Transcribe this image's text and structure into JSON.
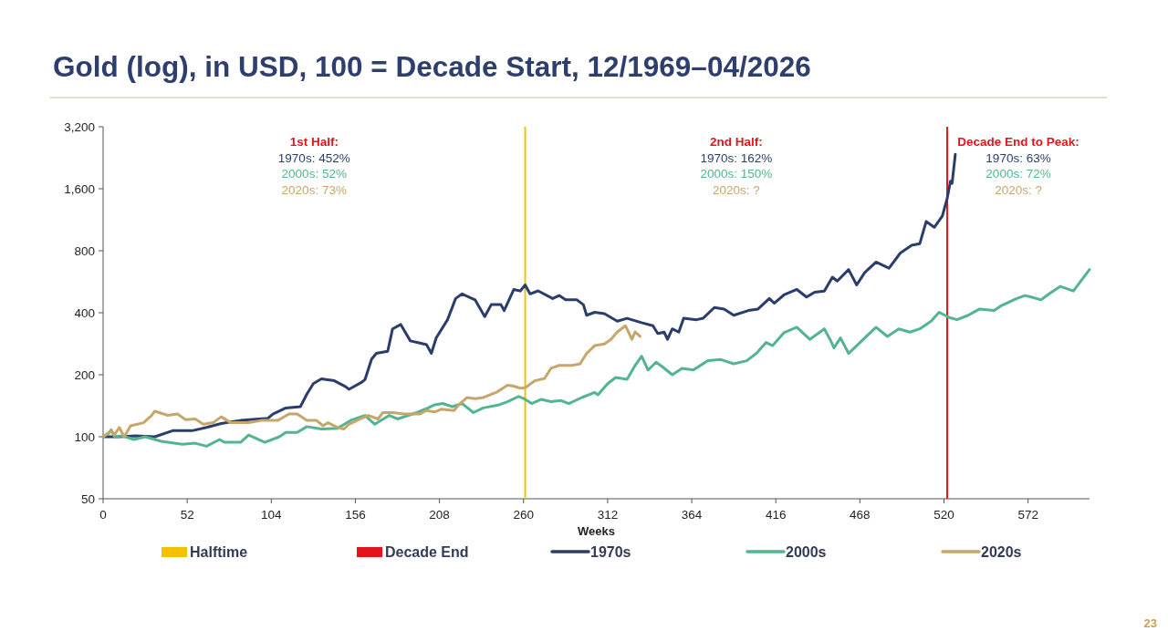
{
  "chart_data": {
    "type": "line",
    "title": "Gold (log), in USD, 100 = Decade Start, 12/1969–04/2026",
    "xlabel": "Weeks",
    "xlim": [
      0,
      610
    ],
    "xticks": [
      0,
      52,
      104,
      156,
      208,
      260,
      312,
      364,
      416,
      468,
      520,
      572
    ],
    "ylim": [
      50,
      3200
    ],
    "yticks": [
      50,
      100,
      200,
      400,
      800,
      {
        "value": 1600,
        "label": "1,600"
      },
      {
        "value": 3200,
        "label": "3,200"
      }
    ],
    "log": true,
    "legend": "bottom",
    "ref_lines": [
      {
        "axis": "x",
        "value": 261,
        "label": "Halftime",
        "color": "#f2c200"
      },
      {
        "axis": "x",
        "value": 522,
        "label": "Decade End",
        "color": "#e3141c"
      }
    ],
    "annotations": [
      "1st Half:\n1970s: 452%\n2000s: 52%\n2020s: 73%",
      "2nd Half:\n1970s: 162%\n2000s: 150%\n2020s: ?",
      "Decade End to Peak:\n1970s: 63%\n2000s: 72%\n2020s: ?",
      "23"
    ],
    "series": [
      {
        "name": "1970s",
        "color": "#2b3d6b",
        "x": [
          0,
          10,
          20,
          32,
          43,
          55,
          64,
          73,
          85,
          102,
          105,
          113,
          122,
          126,
          130,
          135,
          143,
          150,
          152,
          160,
          162,
          166,
          169,
          176,
          179,
          184,
          190,
          196,
          200,
          203,
          206,
          213,
          218,
          222,
          230,
          236,
          240,
          246,
          248,
          254,
          258,
          261,
          264,
          269,
          278,
          282,
          286,
          293,
          297,
          299,
          304,
          310,
          318,
          324,
          333,
          340,
          343,
          347,
          349,
          352,
          356,
          359,
          367,
          371,
          378,
          384,
          390,
          399,
          405,
          412,
          415,
          421,
          429,
          435,
          440,
          446,
          451,
          454,
          461,
          466,
          471,
          478,
          486,
          493,
          500,
          505,
          509,
          514,
          519,
          522,
          524,
          525,
          527
        ],
        "values": [
          100,
          100,
          101,
          100,
          107,
          107,
          111,
          116,
          120,
          123,
          129,
          138,
          140,
          161,
          181,
          191,
          187,
          175,
          170,
          184,
          190,
          238,
          254,
          260,
          334,
          351,
          292,
          285,
          280,
          254,
          302,
          370,
          469,
          494,
          462,
          383,
          438,
          438,
          410,
          519,
          510,
          546,
          494,
          511,
          469,
          485,
          462,
          462,
          438,
          389,
          402,
          396,
          364,
          376,
          358,
          346,
          317,
          322,
          297,
          334,
          322,
          376,
          370,
          376,
          424,
          417,
          389,
          410,
          417,
          469,
          445,
          488,
          519,
          477,
          503,
          510,
          595,
          570,
          648,
          546,
          627,
          705,
          658,
          780,
          850,
          865,
          1110,
          1040,
          1180,
          1440,
          1740,
          1700,
          2350
        ]
      },
      {
        "name": "2000s",
        "color": "#52b58f",
        "x": [
          0,
          3,
          5,
          7,
          12,
          19,
          26,
          36,
          49,
          57,
          64,
          72,
          75,
          85,
          90,
          100,
          109,
          113,
          120,
          126,
          135,
          145,
          154,
          162,
          168,
          177,
          182,
          194,
          201,
          205,
          210,
          216,
          222,
          229,
          235,
          245,
          250,
          257,
          261,
          265,
          271,
          277,
          283,
          288,
          296,
          304,
          306,
          312,
          317,
          324,
          329,
          333,
          337,
          342,
          346,
          352,
          358,
          365,
          374,
          382,
          390,
          398,
          404,
          410,
          414,
          421,
          429,
          437,
          446,
          450,
          452,
          456,
          461,
          466,
          472,
          478,
          485,
          492,
          499,
          505,
          512,
          517,
          523,
          528,
          535,
          542,
          551,
          555,
          565,
          570,
          574,
          580,
          585,
          592,
          600,
          605,
          610
        ],
        "values": [
          100,
          103,
          108,
          100,
          101,
          97,
          100,
          95,
          92,
          93,
          90,
          97,
          94,
          94,
          102,
          94,
          100,
          105,
          105,
          112,
          109,
          110,
          121,
          127,
          115,
          127,
          122,
          131,
          138,
          143,
          145,
          140,
          145,
          131,
          138,
          143,
          148,
          157,
          152,
          145,
          152,
          148,
          150,
          145,
          155,
          164,
          160,
          181,
          194,
          190,
          222,
          246,
          211,
          230,
          218,
          200,
          215,
          211,
          234,
          237,
          226,
          234,
          254,
          287,
          277,
          320,
          340,
          297,
          334,
          292,
          270,
          302,
          254,
          277,
          307,
          340,
          307,
          334,
          322,
          334,
          364,
          402,
          380,
          370,
          389,
          417,
          410,
          431,
          469,
          485,
          477,
          462,
          494,
          537,
          510,
          575,
          648
        ]
      },
      {
        "name": "2020s",
        "color": "#c6a66a",
        "x": [
          0,
          5,
          7,
          10,
          13,
          17,
          25,
          30,
          32,
          40,
          46,
          51,
          57,
          62,
          68,
          73,
          79,
          90,
          98,
          108,
          115,
          120,
          126,
          132,
          136,
          139,
          145,
          149,
          152,
          160,
          164,
          170,
          173,
          179,
          186,
          196,
          200,
          205,
          209,
          217,
          220,
          225,
          230,
          235,
          243,
          250,
          254,
          258,
          261,
          267,
          273,
          277,
          282,
          290,
          295,
          299,
          304,
          310,
          314,
          318,
          323,
          327,
          329,
          332
        ],
        "values": [
          100,
          107,
          102,
          111,
          100,
          113,
          117,
          127,
          133,
          127,
          129,
          121,
          122,
          115,
          117,
          125,
          117,
          117,
          120,
          120,
          129,
          129,
          120,
          120,
          113,
          117,
          111,
          109,
          115,
          123,
          127,
          122,
          131,
          131,
          129,
          129,
          134,
          132,
          136,
          134,
          143,
          155,
          153,
          155,
          164,
          178,
          176,
          172,
          173,
          187,
          192,
          215,
          222,
          222,
          226,
          254,
          277,
          282,
          297,
          323,
          346,
          297,
          323,
          307
        ]
      }
    ]
  }
}
